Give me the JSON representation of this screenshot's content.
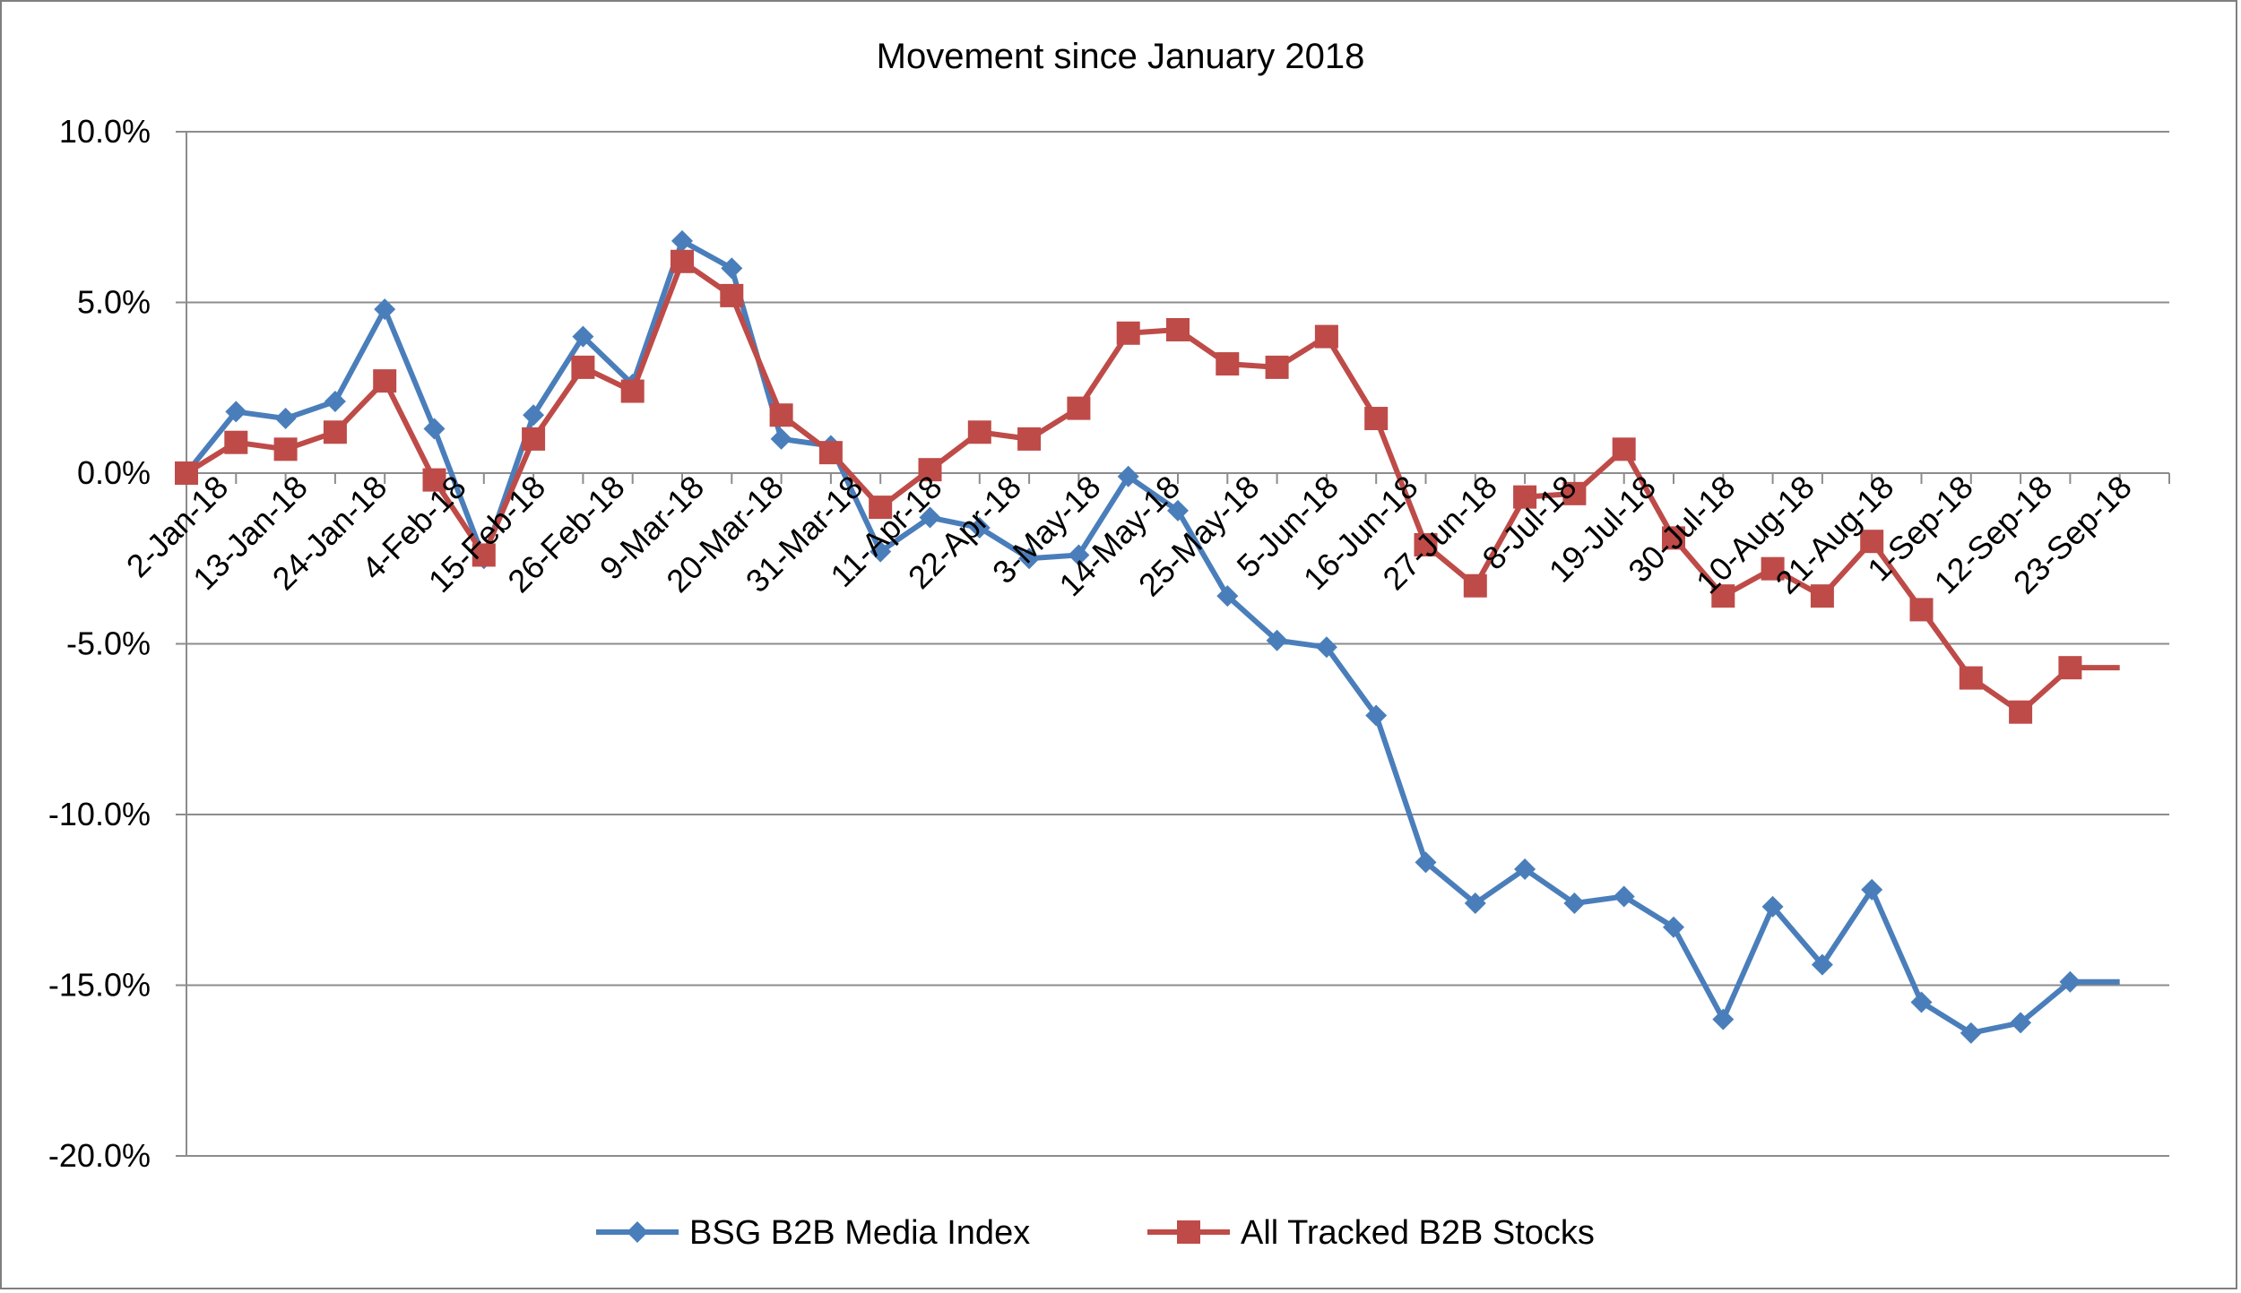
{
  "chart_data": {
    "type": "line",
    "title": "Movement since January 2018",
    "xlabel": "",
    "ylabel": "",
    "ylim": [
      -0.2,
      0.1
    ],
    "y_ticks": [
      0.1,
      0.05,
      0.0,
      -0.05,
      -0.1,
      -0.15,
      -0.2
    ],
    "y_tick_labels": [
      "10.0%",
      "5.0%",
      "0.0%",
      "-5.0%",
      "-10.0%",
      "-15.0%",
      "-20.0%"
    ],
    "grid": true,
    "legend_position": "bottom",
    "x_tick_labels": [
      "2-Jan-18",
      "13-Jan-18",
      "24-Jan-18",
      "4-Feb-18",
      "15-Feb-18",
      "26-Feb-18",
      "9-Mar-18",
      "20-Mar-18",
      "31-Mar-18",
      "11-Apr-18",
      "22-Apr-18",
      "3-May-18",
      "14-May-18",
      "25-May-18",
      "5-Jun-18",
      "16-Jun-18",
      "27-Jun-18",
      "8-Jul-18",
      "19-Jul-18",
      "30-Jul-18",
      "10-Aug-18",
      "21-Aug-18",
      "1-Sep-18",
      "12-Sep-18",
      "23-Sep-18"
    ],
    "x": [
      "2018-01-02",
      "2018-01-09",
      "2018-01-16",
      "2018-01-23",
      "2018-01-30",
      "2018-02-06",
      "2018-02-13",
      "2018-02-20",
      "2018-02-27",
      "2018-03-06",
      "2018-03-13",
      "2018-03-20",
      "2018-03-27",
      "2018-04-03",
      "2018-04-10",
      "2018-04-17",
      "2018-04-24",
      "2018-05-01",
      "2018-05-08",
      "2018-05-15",
      "2018-05-22",
      "2018-05-29",
      "2018-06-05",
      "2018-06-12",
      "2018-06-19",
      "2018-06-26",
      "2018-07-03",
      "2018-07-10",
      "2018-07-17",
      "2018-07-24",
      "2018-07-31",
      "2018-08-07",
      "2018-08-14",
      "2018-08-21",
      "2018-08-28",
      "2018-09-04",
      "2018-09-11",
      "2018-09-18",
      "2018-09-25",
      "2018-10-02"
    ],
    "series": [
      {
        "name": "BSG B2B Media Index",
        "color": "#4a7ebb",
        "marker": "diamond",
        "values": [
          0.0,
          0.018,
          0.016,
          0.021,
          0.048,
          0.013,
          -0.025,
          0.017,
          0.04,
          0.026,
          0.068,
          0.06,
          0.01,
          0.008,
          -0.023,
          -0.013,
          -0.016,
          -0.025,
          -0.024,
          -0.001,
          -0.011,
          -0.036,
          -0.049,
          -0.051,
          -0.071,
          -0.114,
          -0.126,
          -0.116,
          -0.126,
          -0.124,
          -0.133,
          -0.16,
          -0.127,
          -0.144,
          -0.122,
          -0.155,
          -0.164,
          -0.161,
          -0.149,
          -0.149
        ]
      },
      {
        "name": "All Tracked B2B Stocks",
        "color": "#be4b48",
        "marker": "square",
        "values": [
          0.0,
          0.009,
          0.007,
          0.012,
          0.027,
          -0.002,
          -0.024,
          0.01,
          0.031,
          0.024,
          0.062,
          0.052,
          0.017,
          0.006,
          -0.01,
          0.001,
          0.012,
          0.01,
          0.019,
          0.041,
          0.042,
          0.032,
          0.031,
          0.04,
          0.016,
          -0.021,
          -0.033,
          -0.007,
          -0.006,
          0.007,
          -0.019,
          -0.036,
          -0.028,
          -0.036,
          -0.02,
          -0.04,
          -0.06,
          -0.07,
          -0.057,
          -0.057
        ]
      }
    ]
  }
}
